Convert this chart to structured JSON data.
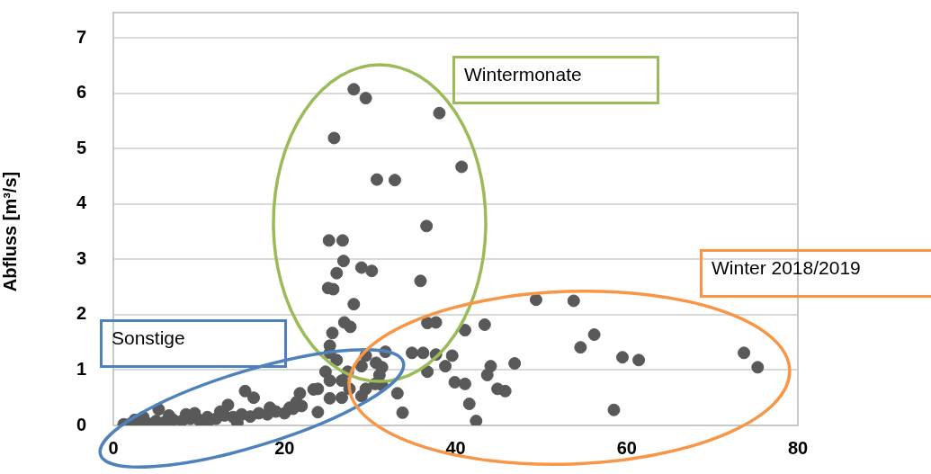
{
  "chart_data": {
    "type": "scatter",
    "ylabel": "Abfluss [m³/s]",
    "xlim": [
      0,
      80
    ],
    "xticks": [
      0,
      20,
      40,
      60,
      80
    ],
    "ylim": [
      0,
      7
    ],
    "yticks": [
      0,
      1,
      2,
      3,
      4,
      5,
      6,
      7
    ],
    "grid": "y",
    "legend": false,
    "marker": "circle",
    "annotations": [
      "Wintermonate",
      "Sonstige",
      "Winter 2018/2019"
    ],
    "series": [
      {
        "color": "#595959",
        "x": [
          28.1,
          29.5,
          38.1,
          25.8,
          40.7,
          30.8,
          32.9,
          36.6,
          25.2,
          26.8,
          26.9,
          29.0,
          30.2,
          26.1,
          35.9,
          25.1,
          25.7,
          28.1,
          27.0,
          27.7,
          25.6,
          36.7,
          37.7,
          41.1,
          43.4,
          25.3,
          25.3,
          26.1,
          31.8,
          29.5,
          29.0,
          30.7,
          31.4,
          34.9,
          36.2,
          37.7,
          39.6,
          38.8,
          36.7,
          44.1,
          43.7,
          24.8,
          27.4,
          25.3,
          26.7,
          31.1,
          30.6,
          31.4,
          29.5,
          27.6,
          39.9,
          41.1,
          44.9,
          33.2,
          29.0,
          25.3,
          26.7,
          41.6,
          33.8,
          42.4,
          23.9,
          23.4,
          21.8,
          21.4,
          15.4,
          16.4,
          23.9,
          20.6,
          18.3,
          13.4,
          5.3,
          1.2,
          2,
          3,
          4,
          5,
          6,
          7,
          8,
          9,
          10,
          11,
          12,
          13,
          14,
          15,
          16,
          17,
          18,
          19,
          20,
          21,
          22,
          3.5,
          6.5,
          9.5,
          12.5,
          2.5,
          8.5,
          11,
          14.5,
          49.4,
          53.8,
          56.2,
          54.6,
          73.7,
          75.3,
          59.5,
          61.4,
          46.9,
          45.8,
          58.5
        ],
        "values": [
          6.07,
          5.91,
          5.64,
          5.19,
          4.67,
          4.44,
          4.43,
          3.6,
          3.34,
          3.34,
          2.97,
          2.85,
          2.79,
          2.75,
          2.61,
          2.48,
          2.46,
          2.19,
          1.86,
          1.78,
          1.67,
          1.85,
          1.86,
          1.72,
          1.82,
          1.44,
          1.31,
          1.18,
          1.33,
          1.26,
          1.07,
          1.13,
          1.05,
          1.31,
          1.31,
          1.28,
          1.26,
          1.07,
          0.97,
          1.07,
          0.91,
          0.97,
          0.97,
          0.81,
          0.81,
          0.91,
          0.75,
          0.73,
          0.66,
          0.66,
          0.78,
          0.75,
          0.66,
          0.58,
          0.53,
          0.49,
          0.5,
          0.39,
          0.23,
          0.08,
          0.66,
          0.65,
          0.58,
          0.42,
          0.62,
          0.5,
          0.24,
          0.32,
          0.32,
          0.37,
          0.29,
          0.02,
          0.03,
          0.05,
          0.04,
          0.08,
          0.06,
          0.1,
          0.08,
          0.12,
          0.1,
          0.15,
          0.12,
          0.18,
          0.15,
          0.2,
          0.16,
          0.22,
          0.2,
          0.25,
          0.22,
          0.3,
          0.35,
          0.15,
          0.18,
          0.22,
          0.25,
          0.1,
          0.2,
          0.05,
          0.05,
          2.27,
          2.25,
          1.64,
          1.41,
          1.31,
          1.05,
          1.23,
          1.18,
          1.12,
          0.62,
          0.28
        ]
      }
    ]
  }
}
